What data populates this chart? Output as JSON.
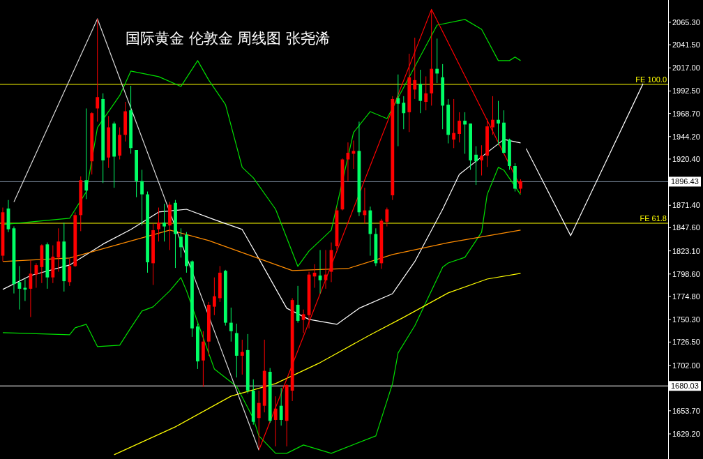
{
  "chart_data": {
    "type": "candlestick",
    "title": "国际黄金 伦敦金 周线图 张尧浠",
    "categories": [
      null,
      null,
      null,
      null,
      null,
      null,
      null,
      null,
      null,
      null,
      null,
      null,
      null,
      null,
      null,
      null,
      null,
      null,
      null,
      null,
      null,
      null,
      null,
      null,
      null,
      null,
      null,
      null,
      null,
      null,
      null,
      null,
      null,
      null,
      null,
      null,
      null,
      null,
      null,
      null,
      null,
      null,
      null,
      null,
      null,
      null,
      null,
      null,
      null,
      null,
      null,
      null,
      null,
      null,
      null,
      null,
      null,
      null,
      null,
      null,
      null,
      null,
      null,
      null,
      null,
      null,
      null,
      null,
      null,
      null,
      null,
      null,
      null,
      null,
      null,
      null,
      null,
      null,
      null,
      null,
      null,
      null,
      null,
      null,
      null,
      null,
      null,
      null,
      null,
      null,
      null,
      null,
      null,
      null,
      null,
      null,
      null,
      null,
      null,
      null,
      null,
      null,
      null,
      null,
      null,
      null,
      null,
      null,
      null,
      null,
      null,
      null,
      null,
      null,
      null,
      null,
      null,
      null,
      null,
      null
    ],
    "ohlc": [
      [
        1818,
        1869,
        1812,
        1864
      ],
      [
        1868,
        1877,
        1843,
        1846
      ],
      [
        1847,
        1849,
        1778,
        1788
      ],
      [
        1790,
        1807,
        1761,
        1783
      ],
      [
        1784,
        1793,
        1770,
        1782
      ],
      [
        1783,
        1813,
        1753,
        1799
      ],
      [
        1798,
        1810,
        1784,
        1808
      ],
      [
        1806,
        1830,
        1789,
        1829
      ],
      [
        1830,
        1832,
        1783,
        1795
      ],
      [
        1795,
        1829,
        1789,
        1817
      ],
      [
        1816,
        1847,
        1801,
        1833
      ],
      [
        1833,
        1853,
        1780,
        1791
      ],
      [
        1790,
        1815,
        1786,
        1807
      ],
      [
        1807,
        1864,
        1806,
        1861
      ],
      [
        1861,
        1902,
        1844,
        1898
      ],
      [
        1898,
        1974,
        1878,
        1887
      ],
      [
        1918,
        1970,
        1904,
        1969
      ],
      [
        1974,
        2069,
        1960,
        1986
      ],
      [
        1984,
        1990,
        1895,
        1919
      ],
      [
        1922,
        1966,
        1911,
        1954
      ],
      [
        1958,
        1960,
        1890,
        1923
      ],
      [
        1924,
        1954,
        1920,
        1946
      ],
      [
        1946,
        1981,
        1939,
        1971
      ],
      [
        1972,
        1998,
        1926,
        1932
      ],
      [
        1930,
        1930,
        1880,
        1897
      ],
      [
        1897,
        1909,
        1850,
        1883
      ],
      [
        1883,
        1886,
        1800,
        1811
      ],
      [
        1810,
        1852,
        1787,
        1845
      ],
      [
        1846,
        1869,
        1833,
        1853
      ],
      [
        1853,
        1873,
        1833,
        1849
      ],
      [
        1850,
        1875,
        1824,
        1872
      ],
      [
        1874,
        1877,
        1805,
        1841
      ],
      [
        1838,
        1847,
        1816,
        1827
      ],
      [
        1840,
        1843,
        1800,
        1807
      ],
      [
        1812,
        1813,
        1732,
        1741
      ],
      [
        1743,
        1746,
        1698,
        1706
      ],
      [
        1707,
        1738,
        1679,
        1727
      ],
      [
        1727,
        1769,
        1712,
        1766
      ],
      [
        1764,
        1795,
        1755,
        1775
      ],
      [
        1773,
        1807,
        1769,
        1800
      ],
      [
        1802,
        1803,
        1744,
        1747
      ],
      [
        1747,
        1763,
        1727,
        1738
      ],
      [
        1736,
        1746,
        1689,
        1712
      ],
      [
        1712,
        1729,
        1692,
        1716
      ],
      [
        1718,
        1735,
        1672,
        1675
      ],
      [
        1675,
        1687,
        1639,
        1642
      ],
      [
        1646,
        1675,
        1615,
        1662
      ],
      [
        1659,
        1729,
        1652,
        1696
      ],
      [
        1695,
        1699,
        1641,
        1643
      ],
      [
        1644,
        1669,
        1616,
        1656
      ],
      [
        1659,
        1678,
        1638,
        1644
      ],
      [
        1643,
        1682,
        1616,
        1681
      ],
      [
        1675,
        1773,
        1664,
        1771
      ],
      [
        1766,
        1786,
        1747,
        1749
      ],
      [
        1750,
        1761,
        1736,
        1756
      ],
      [
        1755,
        1801,
        1741,
        1798
      ],
      [
        1796,
        1809,
        1784,
        1800
      ],
      [
        1797,
        1824,
        1778,
        1792
      ],
      [
        1792,
        1824,
        1783,
        1798
      ],
      [
        1801,
        1832,
        1790,
        1824
      ],
      [
        1828,
        1869,
        1824,
        1866
      ],
      [
        1867,
        1921,
        1866,
        1920
      ],
      [
        1920,
        1938,
        1897,
        1927
      ],
      [
        1926,
        1940,
        1910,
        1929
      ],
      [
        1929,
        1960,
        1860,
        1864
      ],
      [
        1861,
        1890,
        1852,
        1866
      ],
      [
        1866,
        1870,
        1818,
        1841
      ],
      [
        1841,
        1847,
        1807,
        1810
      ],
      [
        1810,
        1857,
        1804,
        1855
      ],
      [
        1854,
        1869,
        1849,
        1867
      ],
      [
        1882,
        1987,
        1877,
        1984
      ],
      [
        1985,
        2010,
        1934,
        1979
      ],
      [
        1980,
        1987,
        1952,
        1969
      ],
      [
        1970,
        2032,
        1949,
        2007
      ],
      [
        1994,
        2049,
        1984,
        2004
      ],
      [
        2000,
        2015,
        1969,
        1982
      ],
      [
        1981,
        2008,
        1972,
        1990
      ],
      [
        1990,
        2078,
        1977,
        2016
      ],
      [
        2016,
        2048,
        2001,
        2011
      ],
      [
        2007,
        2021,
        1952,
        1977
      ],
      [
        1978,
        1984,
        1937,
        1946
      ],
      [
        1941,
        1984,
        1932,
        1948
      ],
      [
        1947,
        1970,
        1938,
        1961
      ],
      [
        1961,
        1970,
        1926,
        1957
      ],
      [
        1958,
        1958,
        1909,
        1919
      ],
      [
        1925,
        1934,
        1893,
        1918
      ],
      [
        1919,
        1935,
        1903,
        1924
      ],
      [
        1924,
        1963,
        1912,
        1955
      ],
      [
        1954,
        1987,
        1946,
        1962
      ],
      [
        1962,
        1982,
        1935,
        1958
      ],
      [
        1959,
        1972,
        1926,
        1927
      ],
      [
        1941,
        1942,
        1909,
        1913
      ],
      [
        1913,
        1916,
        1886,
        1889
      ],
      [
        1889,
        1899,
        1884,
        1897
      ],
      null,
      null,
      null,
      null,
      null,
      null,
      null,
      null,
      null,
      null,
      null,
      null,
      null,
      null,
      null,
      null,
      null,
      null,
      null,
      null,
      null,
      null,
      null,
      null,
      null,
      null
    ],
    "colors": [
      "#ff0000",
      "#00ff66",
      "#00ff66",
      "#00ff66",
      "#00ff66",
      "#ff0000",
      "#ff0000",
      "#ff0000",
      "#00ff66",
      "#ff0000",
      "#ff0000",
      "#00ff66",
      "#ff0000",
      "#ff0000",
      "#ff0000",
      "#00ff66",
      "#ff0000",
      "#ff0000",
      "#00ff66",
      "#ff0000",
      "#00ff66",
      "#ff0000",
      "#ff0000",
      "#00ff66",
      "#00ff66",
      "#00ff66",
      "#00ff66",
      "#ff0000",
      "#ff0000",
      "#00ff66",
      "#ff0000",
      "#00ff66",
      "#00ff66",
      "#00ff66",
      "#00ff66",
      "#00ff66",
      "#ff0000",
      "#ff0000",
      "#ff0000",
      "#ff0000",
      "#00ff66",
      "#00ff66",
      "#00ff66",
      "#ff0000",
      "#00ff66",
      "#00ff66",
      "#ff0000",
      "#ff0000",
      "#00ff66",
      "#ff0000",
      "#00ff66",
      "#ff0000",
      "#ff0000",
      "#00ff66",
      "#ff0000",
      "#ff0000",
      "#ff0000",
      "#00ff66",
      "#ff0000",
      "#ff0000",
      "#ff0000",
      "#ff0000",
      "#ff0000",
      "#ff0000",
      "#00ff66",
      "#ff0000",
      "#00ff66",
      "#00ff66",
      "#ff0000",
      "#ff0000",
      "#ff0000",
      "#00ff66",
      "#00ff66",
      "#ff0000",
      "#ff0000",
      "#00ff66",
      "#ff0000",
      "#ff0000",
      "#00ff66",
      "#00ff66",
      "#00ff66",
      "#ff0000",
      "#ff0000",
      "#00ff66",
      "#00ff66",
      "#00ff66",
      "#ff0000",
      "#ff0000",
      "#ff0000",
      "#00ff66",
      "#00ff66",
      "#00ff66",
      "#00ff66",
      "#ff0000",
      null,
      null,
      null,
      null,
      null,
      null,
      null,
      null,
      null,
      null,
      null,
      null,
      null,
      null,
      null,
      null,
      null,
      null,
      null,
      null,
      null,
      null,
      null,
      null,
      null,
      null
    ],
    "series": [
      {
        "type": "line",
        "color": "#00e000",
        "values": [
          1851,
          null,
          null,
          null,
          null,
          null,
          null,
          null,
          null,
          null,
          null,
          null,
          1857.6,
          null,
          null,
          1885.7,
          null,
          1953.7,
          null,
          null,
          null,
          1987.7,
          null,
          2013.6,
          null,
          null,
          null,
          null,
          2007.7,
          null,
          null,
          null,
          1997.3,
          null,
          null,
          2024.7,
          null,
          2004,
          null,
          null,
          1978.1,
          null,
          null,
          1911.6,
          null,
          1900.5,
          null,
          null,
          null,
          1867.2,
          null,
          null,
          null,
          1806.6,
          null,
          1822.9,
          null,
          null,
          null,
          1845.1,
          null,
          null,
          null,
          1948.5,
          null,
          null,
          1970.7,
          null,
          null,
          1963.3,
          null,
          null,
          null,
          null,
          null,
          null,
          null,
          null,
          2062.3,
          null,
          null,
          null,
          null,
          2068.3,
          null,
          null,
          2057.9,
          null,
          null,
          2024.7,
          null,
          2024.7,
          2028.4,
          2024.7,
          null,
          null,
          null,
          null,
          null,
          null,
          null,
          null,
          null,
          null,
          null,
          null,
          null,
          null,
          null,
          null,
          null,
          null,
          null,
          null,
          null,
          null,
          null,
          null,
          null,
          null
        ]
      },
      {
        "type": "line",
        "color": "#00e000",
        "values": [
          1736.4,
          null,
          null,
          null,
          null,
          null,
          null,
          null,
          null,
          null,
          null,
          null,
          1734.2,
          1741.6,
          null,
          1745.3,
          null,
          1721.7,
          null,
          null,
          null,
          1723.2,
          null,
          1741.6,
          null,
          1759.4,
          null,
          1763.8,
          null,
          null,
          1780.8,
          null,
          1794.8,
          1780.8,
          null,
          1747.5,
          null,
          null,
          1698,
          null,
          null,
          null,
          1679.5,
          null,
          null,
          1645.6,
          1627.1,
          null,
          null,
          1608.6,
          null,
          1608.6,
          null,
          null,
          1617.5,
          null,
          null,
          null,
          null,
          1608.6,
          null,
          null,
          null,
          null,
          null,
          null,
          null,
          1627.1,
          null,
          null,
          1682.5,
          1715,
          null,
          null,
          1743.8,
          null,
          null,
          null,
          null,
          1805.9,
          1810.3,
          null,
          null,
          1816.3,
          null,
          null,
          1842.9,
          1882.8,
          null,
          1911.6,
          1908.6,
          null,
          null,
          1882.8,
          null,
          null,
          null,
          null,
          null,
          null,
          null,
          null,
          null,
          null,
          null,
          null,
          null,
          null,
          null,
          null,
          null,
          null,
          null,
          null,
          null,
          null,
          null,
          null,
          null,
          null
        ]
      },
      {
        "type": "line",
        "color": "#ffffff",
        "values": [
          1782.3,
          null,
          null,
          null,
          null,
          1797,
          null,
          null,
          null,
          null,
          null,
          null,
          1808.1,
          null,
          null,
          null,
          null,
          null,
          1830.3,
          null,
          null,
          null,
          null,
          1845.8,
          null,
          null,
          null,
          null,
          1864.3,
          null,
          null,
          null,
          null,
          1867.2,
          null,
          null,
          null,
          null,
          1856.2,
          null,
          null,
          null,
          null,
          1845.8,
          null,
          null,
          1814.8,
          null,
          null,
          null,
          null,
          1762.3,
          null,
          null,
          null,
          1750.5,
          null,
          null,
          null,
          null,
          1745.3,
          null,
          null,
          null,
          1762.3,
          null,
          null,
          null,
          null,
          null,
          1777.8,
          null,
          null,
          null,
          1811.8,
          null,
          null,
          null,
          null,
          1867.2,
          null,
          null,
          1904.2,
          null,
          null,
          null,
          1922.7,
          null,
          null,
          null,
          1941.2,
          null,
          null,
          1937.5,
          null,
          null,
          null,
          null,
          null,
          null,
          null,
          null,
          null,
          null,
          null,
          null,
          null,
          null,
          null,
          null,
          null,
          null,
          null,
          null,
          null,
          null,
          null,
          null,
          null,
          null
        ]
      },
      {
        "type": "line",
        "color": "#ff8c00",
        "values": [
          1811.8,
          null,
          null,
          null,
          null,
          null,
          null,
          null,
          null,
          null,
          null,
          null,
          1815.5,
          null,
          null,
          null,
          null,
          null,
          null,
          null,
          null,
          null,
          null,
          null,
          null,
          null,
          null,
          null,
          null,
          null,
          1845.1,
          null,
          null,
          null,
          null,
          null,
          null,
          1834,
          null,
          null,
          null,
          null,
          null,
          null,
          null,
          null,
          null,
          null,
          null,
          null,
          null,
          null,
          1802.2,
          null,
          null,
          null,
          null,
          null,
          null,
          null,
          null,
          null,
          1804.4,
          null,
          null,
          null,
          null,
          null,
          null,
          null,
          1819.2,
          null,
          null,
          null,
          null,
          null,
          null,
          null,
          null,
          null,
          1831.8,
          null,
          null,
          null,
          null,
          null,
          null,
          null,
          null,
          null,
          null,
          null,
          null,
          1845.1,
          null,
          null,
          null,
          null,
          null,
          null,
          null,
          null,
          null,
          null,
          null,
          null,
          null,
          null,
          null,
          null,
          null,
          null,
          null,
          null,
          null,
          null,
          null,
          null,
          null,
          null
        ]
      },
      {
        "type": "line",
        "color": "#ffff00",
        "values": [
          null,
          null,
          null,
          null,
          null,
          null,
          null,
          null,
          null,
          null,
          null,
          null,
          null,
          null,
          null,
          null,
          null,
          null,
          null,
          null,
          1607.1,
          null,
          null,
          null,
          null,
          null,
          null,
          null,
          null,
          null,
          null,
          1636.7,
          null,
          null,
          null,
          null,
          null,
          null,
          null,
          null,
          null,
          1669.2,
          null,
          null,
          null,
          null,
          null,
          null,
          null,
          1682.5,
          null,
          null,
          null,
          null,
          null,
          null,
          null,
          1704.7,
          null,
          null,
          null,
          null,
          null,
          null,
          null,
          null,
          1734.2,
          null,
          null,
          null,
          null,
          null,
          1752.7,
          null,
          null,
          null,
          null,
          null,
          null,
          null,
          1778.6,
          null,
          null,
          null,
          null,
          null,
          null,
          1793.3,
          null,
          null,
          null,
          null,
          null,
          1799.3,
          null,
          null,
          null,
          null,
          null,
          null,
          null,
          null,
          null,
          null,
          null,
          null,
          null,
          null,
          null,
          null,
          null,
          null,
          null,
          null,
          null,
          null,
          null,
          null,
          null,
          null
        ]
      },
      {
        "type": "line",
        "color": "#d8d8d8",
        "values": [
          null,
          null,
          1875,
          null,
          null,
          null,
          null,
          null,
          null,
          null,
          null,
          null,
          null,
          null,
          null,
          null,
          null,
          2069,
          null,
          null,
          null,
          null,
          null,
          null,
          null,
          null,
          null,
          null,
          null,
          null,
          null,
          null,
          null,
          null,
          null,
          null,
          null,
          null,
          null,
          null,
          null,
          null,
          null,
          null,
          null,
          null,
          1612,
          null,
          null,
          null,
          null,
          null,
          null,
          null,
          null,
          null,
          null,
          null,
          null,
          null,
          null,
          null,
          null,
          null,
          null,
          null,
          null,
          null,
          null,
          null,
          null,
          null,
          null,
          null,
          null,
          null,
          null,
          null,
          null,
          null,
          null,
          null,
          null,
          null,
          null,
          null,
          null,
          null,
          null,
          null,
          null,
          null,
          null,
          null,
          null,
          null,
          null,
          null,
          null,
          null,
          null,
          null,
          null,
          null,
          null,
          null,
          null,
          null,
          null,
          null,
          null,
          null,
          null,
          null,
          null,
          null,
          null,
          null,
          null,
          null
        ]
      },
      {
        "type": "line",
        "color": "#ff0000",
        "values": [
          null,
          null,
          null,
          null,
          null,
          null,
          null,
          null,
          null,
          null,
          null,
          null,
          null,
          null,
          null,
          null,
          null,
          null,
          null,
          null,
          null,
          null,
          null,
          null,
          null,
          null,
          null,
          null,
          null,
          null,
          null,
          null,
          null,
          null,
          null,
          null,
          null,
          null,
          null,
          null,
          null,
          null,
          null,
          null,
          null,
          null,
          1612,
          null,
          null,
          null,
          null,
          null,
          null,
          null,
          null,
          null,
          null,
          null,
          null,
          null,
          null,
          null,
          null,
          null,
          null,
          null,
          null,
          null,
          null,
          null,
          null,
          null,
          null,
          null,
          null,
          null,
          null,
          2079,
          null,
          null,
          null,
          null,
          null,
          null,
          null,
          null,
          null,
          null,
          null,
          null,
          null,
          null,
          null,
          1891,
          null,
          null,
          null,
          null,
          null,
          null,
          null,
          null,
          null,
          null,
          null,
          null,
          null,
          null,
          null,
          null,
          null,
          null,
          null,
          null,
          null,
          null,
          null,
          null,
          null,
          null
        ]
      },
      {
        "type": "line",
        "color": "#ffffff",
        "values": [
          null,
          null,
          null,
          null,
          null,
          null,
          null,
          null,
          null,
          null,
          null,
          null,
          null,
          null,
          null,
          null,
          null,
          null,
          null,
          null,
          null,
          null,
          null,
          null,
          null,
          null,
          null,
          null,
          null,
          null,
          null,
          null,
          null,
          null,
          null,
          null,
          null,
          null,
          null,
          null,
          null,
          null,
          null,
          null,
          null,
          null,
          null,
          null,
          null,
          null,
          null,
          null,
          null,
          null,
          null,
          null,
          null,
          null,
          null,
          null,
          null,
          null,
          null,
          null,
          null,
          null,
          null,
          null,
          null,
          null,
          null,
          null,
          null,
          null,
          null,
          null,
          null,
          null,
          null,
          null,
          null,
          null,
          null,
          null,
          null,
          null,
          null,
          null,
          null,
          null,
          null,
          null,
          null,
          null,
          1931.5,
          null,
          null,
          null,
          null,
          null,
          null,
          null,
          1839.2,
          null,
          null,
          null,
          null,
          null,
          null,
          null,
          null,
          null,
          null,
          null,
          null,
          2000.3,
          null,
          null,
          null,
          null
        ]
      }
    ],
    "ylim": [
      1602.6,
      2088.9
    ],
    "yticks": [
      {
        "value": 2065.3,
        "label": "2065.30"
      },
      {
        "value": 2041.5,
        "label": "2041.50"
      },
      {
        "value": 2017,
        "label": "2017.00"
      },
      {
        "value": 1992.5,
        "label": "1992.50"
      },
      {
        "value": 1968.7,
        "label": "1968.70"
      },
      {
        "value": 1944.2,
        "label": "1944.20"
      },
      {
        "value": 1920.4,
        "label": "1920.40"
      },
      {
        "value": 1871.4,
        "label": "1871.40"
      },
      {
        "value": 1847.6,
        "label": "1847.60"
      },
      {
        "value": 1823.1,
        "label": "1823.10"
      },
      {
        "value": 1798.6,
        "label": "1798.60"
      },
      {
        "value": 1774.8,
        "label": "1774.80"
      },
      {
        "value": 1750.3,
        "label": "1750.30"
      },
      {
        "value": 1726.5,
        "label": "1726.50"
      },
      {
        "value": 1702,
        "label": "1702.00"
      },
      {
        "value": 1653.7,
        "label": "1653.70"
      },
      {
        "value": 1629.2,
        "label": "1629.20"
      }
    ],
    "ref_lines": [
      {
        "axis": "y",
        "value": 1999.5,
        "label": "FE 100.0",
        "color": "#ffff00"
      },
      {
        "axis": "y",
        "value": 1852.4,
        "label": "FE 61.8",
        "color": "#ffff00"
      },
      {
        "axis": "y",
        "value": 1896.43,
        "label": "1896.43",
        "color": "#778899"
      },
      {
        "axis": "y",
        "value": 1680.03,
        "label": "1680.03",
        "color": "#ffffff"
      }
    ],
    "tick_labels": "y",
    "grid": false
  }
}
